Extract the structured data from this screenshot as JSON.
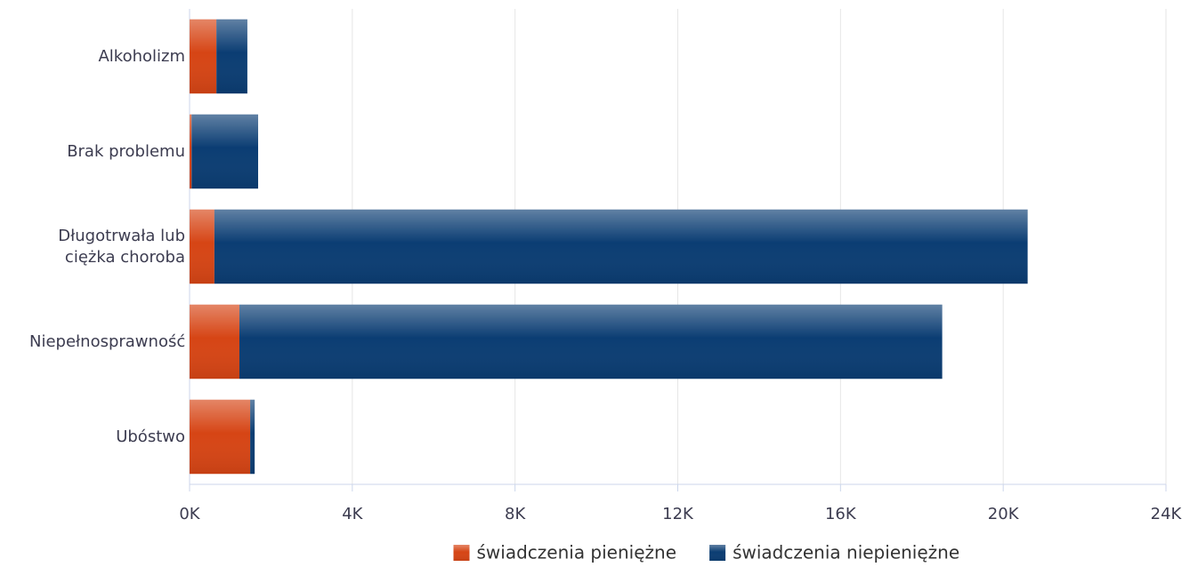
{
  "chart_data": {
    "type": "bar",
    "orientation": "horizontal",
    "stacked": true,
    "categories": [
      "Alkoholizm",
      "Brak problemu",
      "Długotrwała lub ciężka choroba",
      "Niepełnosprawność",
      "Ubóstwo"
    ],
    "series": [
      {
        "name": "świadczenia pieniężne",
        "color": "#d64515",
        "values": [
          660,
          50,
          610,
          1225,
          1490
        ]
      },
      {
        "name": "świadczenia niepieniężne",
        "color": "#0b3d73",
        "values": [
          760,
          1635,
          19990,
          17275,
          110
        ]
      }
    ],
    "xlim": [
      0,
      24000
    ],
    "xticks": [
      {
        "value": 0,
        "label": "0K"
      },
      {
        "value": 4000,
        "label": "4K"
      },
      {
        "value": 8000,
        "label": "8K"
      },
      {
        "value": 12000,
        "label": "12K"
      },
      {
        "value": 16000,
        "label": "16K"
      },
      {
        "value": 20000,
        "label": "20K"
      },
      {
        "value": 24000,
        "label": "24K"
      }
    ],
    "grid": true,
    "legend": "bottom"
  }
}
